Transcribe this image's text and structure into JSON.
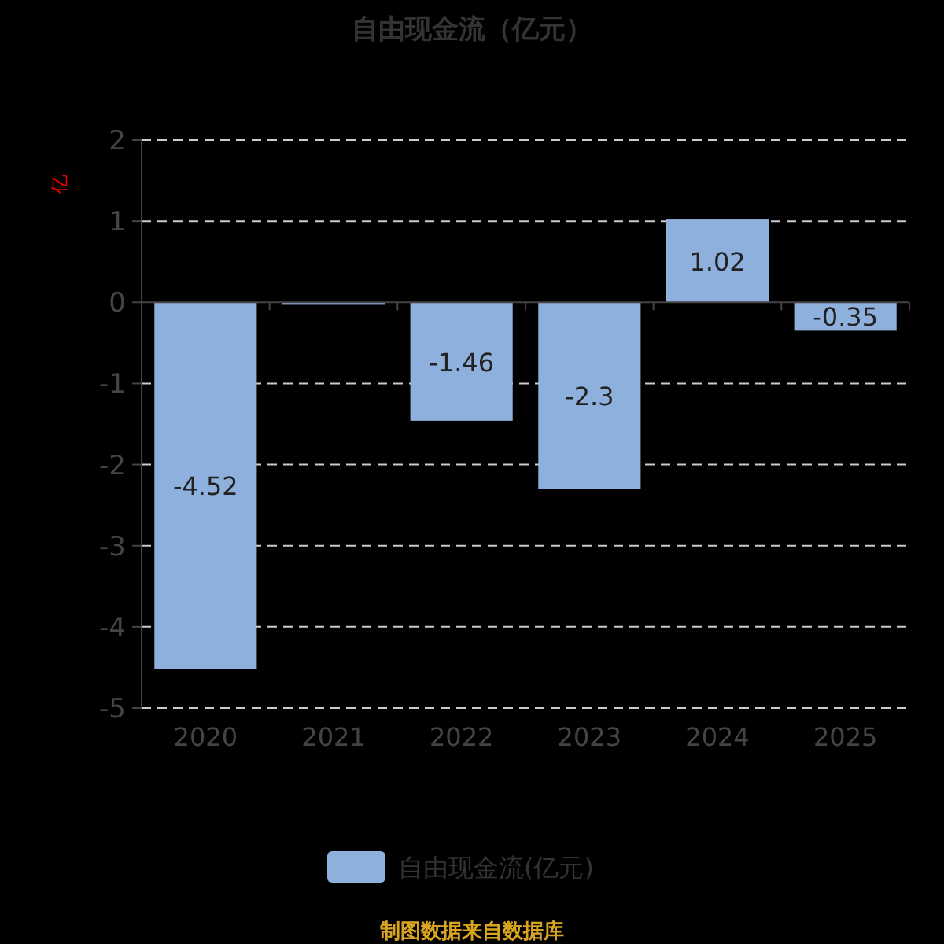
{
  "chart_data": {
    "type": "bar",
    "title": "自由现金流（亿元）",
    "ylabel": "亿",
    "categories": [
      "2020",
      "2021",
      "2022",
      "2023",
      "2024",
      "2025"
    ],
    "series": [
      {
        "name": "自由现金流(亿元)",
        "color": "#8eb0dc",
        "values": [
          -4.52,
          -0.03,
          -1.46,
          -2.3,
          1.02,
          -0.35
        ],
        "value_labels": [
          "-4.52",
          null,
          "-1.46",
          "-2.3",
          "1.02",
          "-0.35"
        ]
      }
    ],
    "ylim": [
      -5,
      2
    ],
    "yticks": [
      -5,
      -4,
      -3,
      -2,
      -1,
      0,
      1,
      2
    ],
    "grid": "y",
    "legend": "bottom",
    "annotations": [
      "制图数据来自数据库"
    ]
  }
}
